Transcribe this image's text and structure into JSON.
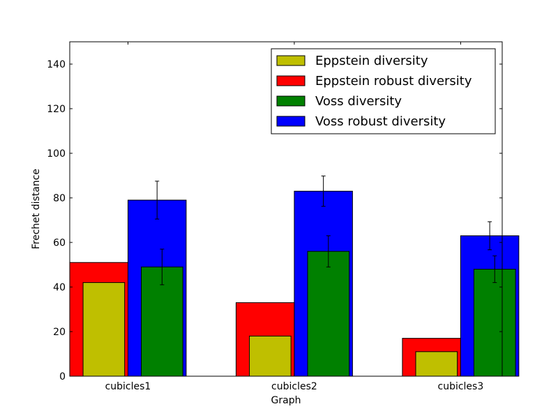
{
  "chart_data": {
    "type": "bar",
    "title": "",
    "xlabel": "Graph",
    "ylabel": "Frechet distance",
    "ylim": [
      0,
      150
    ],
    "yticks": [
      0,
      20,
      40,
      60,
      80,
      100,
      120,
      140
    ],
    "categories": [
      "cubicles1",
      "cubicles2",
      "cubicles3"
    ],
    "grid": false,
    "legend_position": "top-right",
    "series": [
      {
        "name": "Eppstein diversity",
        "color": "#bfbf00",
        "values": [
          42,
          18,
          11
        ],
        "errors": null
      },
      {
        "name": "Eppstein robust diversity",
        "color": "#ff0000",
        "values": [
          51,
          33,
          17
        ],
        "errors": null
      },
      {
        "name": "Voss diversity",
        "color": "#008000",
        "values": [
          49,
          56,
          48
        ],
        "errors": [
          8,
          7,
          6
        ]
      },
      {
        "name": "Voss robust diversity",
        "color": "#0000ff",
        "values": [
          79,
          83,
          63
        ],
        "errors": [
          8.5,
          6.8,
          6.3
        ]
      }
    ]
  }
}
